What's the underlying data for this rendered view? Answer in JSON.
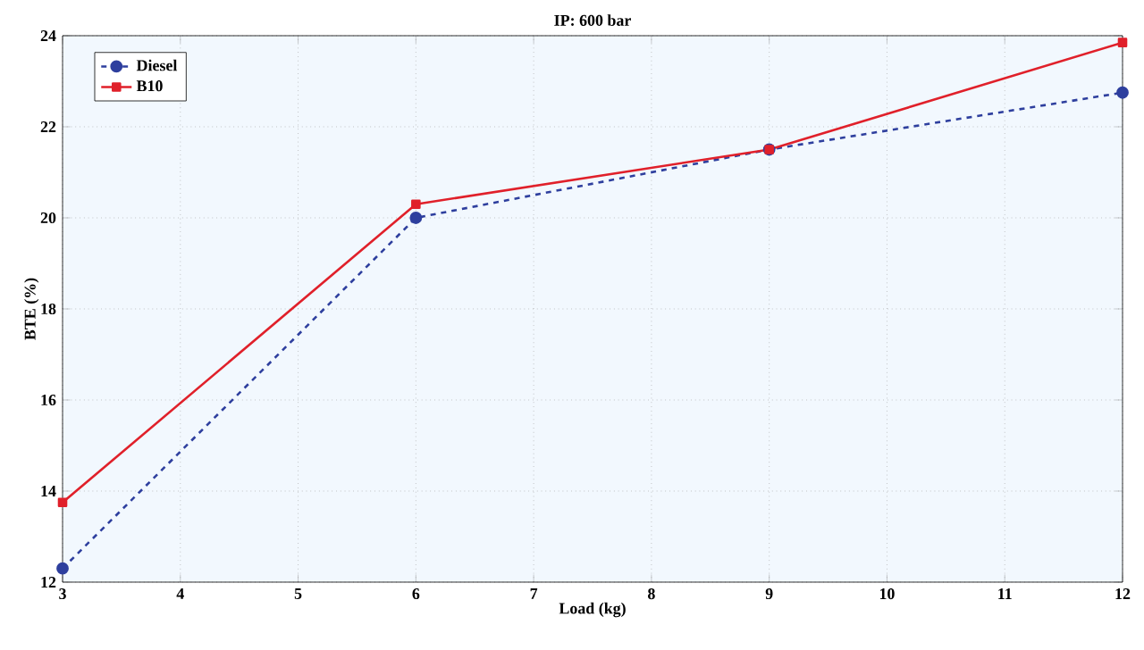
{
  "chart_data": {
    "type": "line",
    "title": "IP: 600 bar",
    "xlabel": "Load (kg)",
    "ylabel": "BTE (%)",
    "x": [
      3,
      6,
      9,
      12
    ],
    "series": [
      {
        "name": "Diesel",
        "color": "#2e3f9e",
        "values": [
          12.3,
          20.0,
          21.5,
          22.75
        ],
        "marker": "circle",
        "line_style": "dashed"
      },
      {
        "name": "B10",
        "color": "#e0202a",
        "values": [
          13.75,
          20.3,
          21.5,
          23.85
        ],
        "marker": "square",
        "line_style": "solid"
      }
    ],
    "xlim": [
      3,
      12
    ],
    "xticks": [
      3,
      4,
      5,
      6,
      7,
      8,
      9,
      10,
      11,
      12
    ],
    "ylim": [
      12,
      24
    ],
    "yticks": [
      12,
      14,
      16,
      18,
      20,
      22,
      24
    ],
    "grid": true,
    "legend": "top left"
  }
}
